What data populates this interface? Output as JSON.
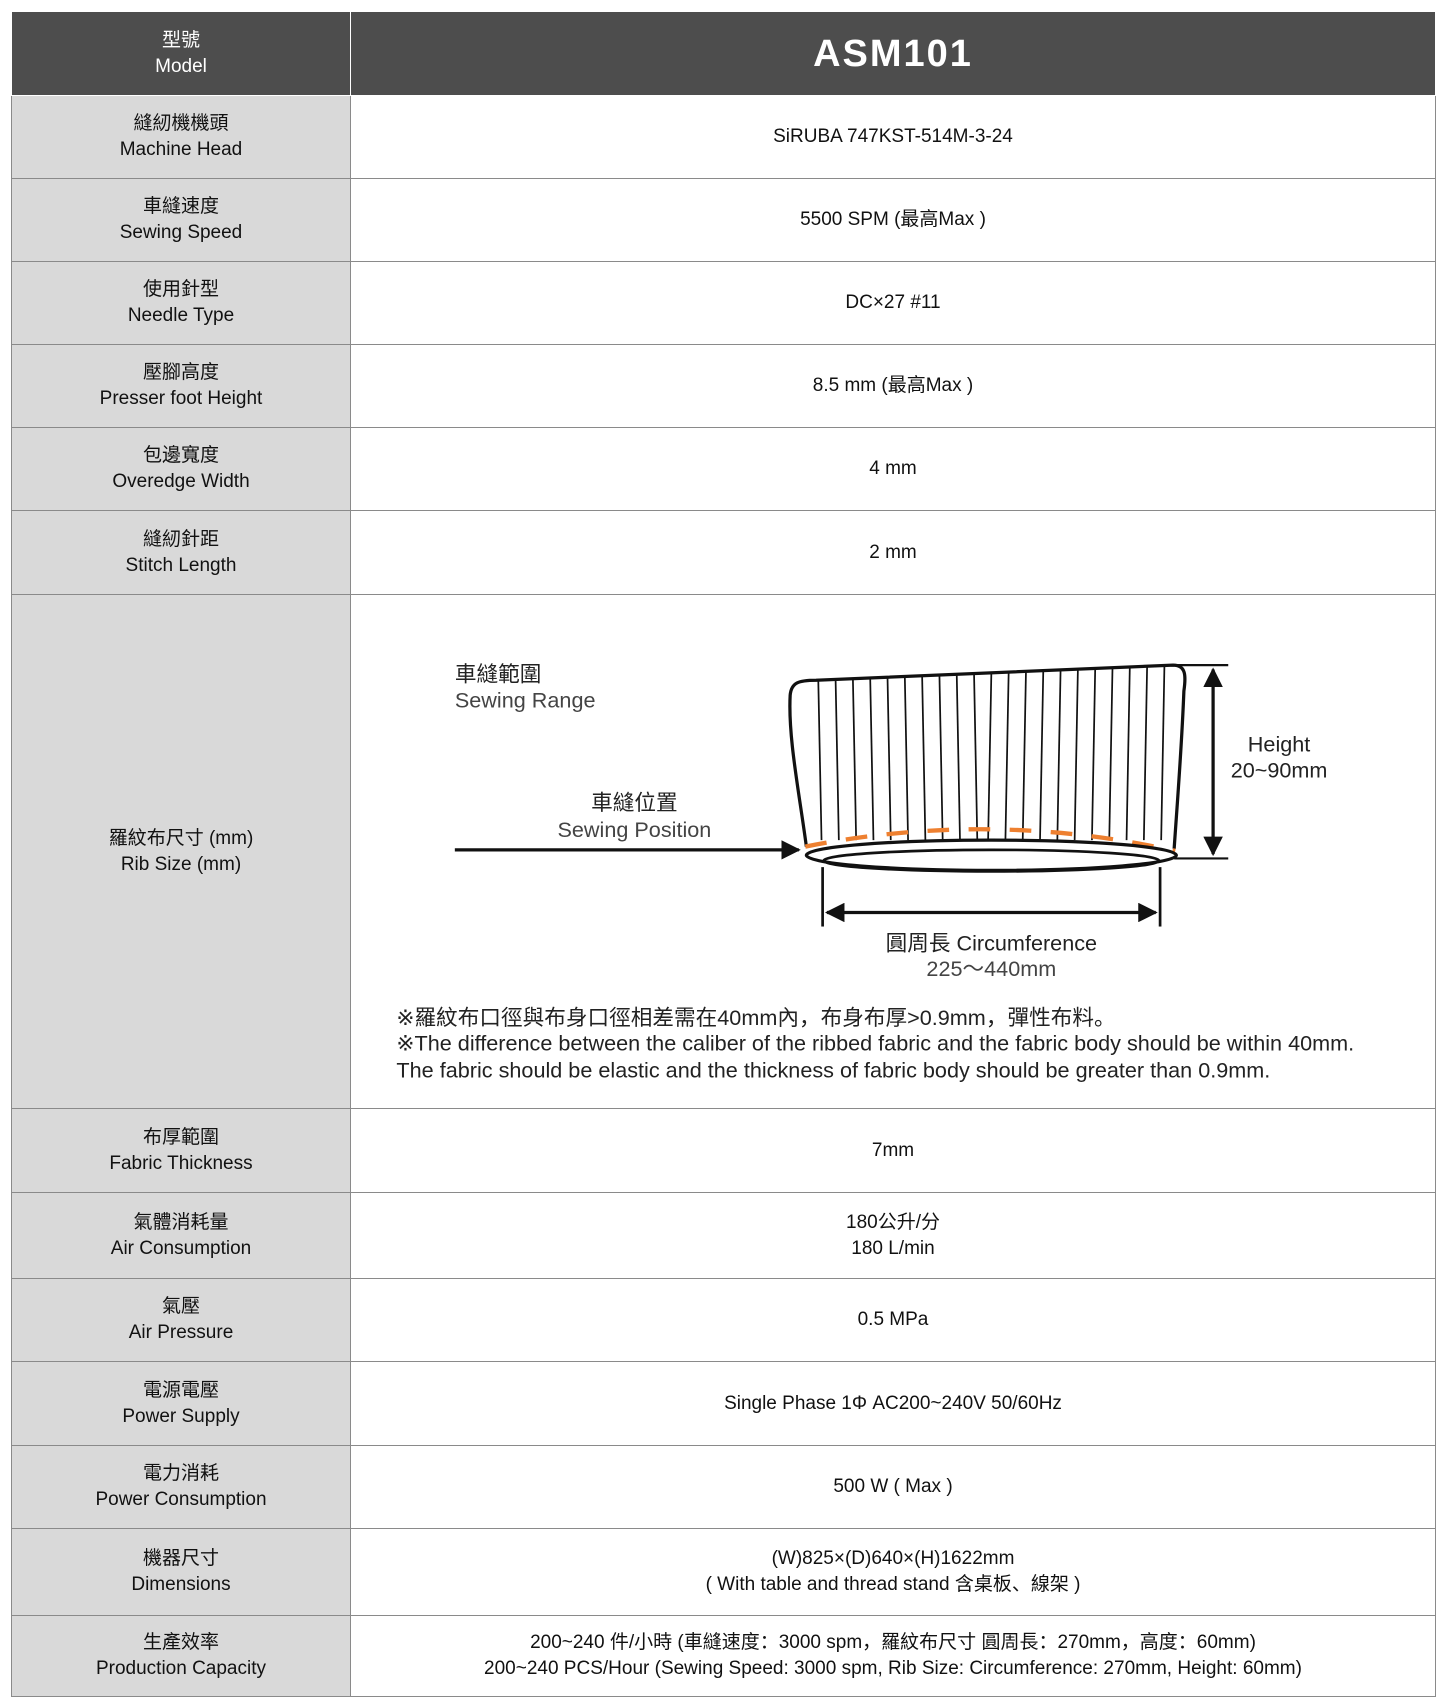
{
  "header": {
    "label": [
      "型號",
      "Model"
    ],
    "model": "ASM101"
  },
  "rows": [
    {
      "label": [
        "縫紉機機頭",
        "Machine Head"
      ],
      "value": [
        "SiRUBA 747KST-514M-3-24"
      ]
    },
    {
      "label": [
        "車縫速度",
        "Sewing Speed"
      ],
      "value": [
        "5500 SPM (最高Max )"
      ]
    },
    {
      "label": [
        "使用針型",
        "Needle Type"
      ],
      "value": [
        "DC×27 #11"
      ]
    },
    {
      "label": [
        "壓腳高度",
        "Presser foot Height"
      ],
      "value": [
        "8.5 mm (最高Max )"
      ]
    },
    {
      "label": [
        "包邊寬度",
        "Overedge Width"
      ],
      "value": [
        "4 mm"
      ]
    },
    {
      "label": [
        "縫紉針距",
        "Stitch Length"
      ],
      "value": [
        "2 mm"
      ]
    },
    {
      "label": [
        "羅紋布尺寸 (mm)",
        "Rib Size (mm)"
      ],
      "value": []
    },
    {
      "label": [
        "布厚範圍",
        "Fabric Thickness"
      ],
      "value": [
        "7mm"
      ]
    },
    {
      "label": [
        "氣體消耗量",
        "Air Consumption"
      ],
      "value": [
        "180公升/分",
        "180 L/min"
      ]
    },
    {
      "label": [
        "氣壓",
        "Air Pressure"
      ],
      "value": [
        "0.5 MPa"
      ]
    },
    {
      "label": [
        "電源電壓",
        "Power Supply"
      ],
      "value": [
        "Single Phase 1Φ AC200~240V  50/60Hz"
      ]
    },
    {
      "label": [
        "電力消耗",
        "Power Consumption"
      ],
      "value": [
        "500 W ( Max )"
      ]
    },
    {
      "label": [
        "機器尺寸",
        "Dimensions"
      ],
      "value": [
        "(W)825×(D)640×(H)1622mm",
        "( With table and thread stand 含桌板、線架 )"
      ]
    },
    {
      "label": [
        "生產效率",
        "Production Capacity"
      ],
      "value": [
        "200~240 件/小時 (車縫速度：3000 spm，羅紋布尺寸  圓周長：270mm，高度：60mm)",
        "200~240 PCS/Hour (Sewing Speed: 3000 spm, Rib Size: Circumference: 270mm, Height: 60mm)"
      ]
    }
  ],
  "rib_diagram": {
    "sewing_range": [
      "車縫範圍",
      "Sewing Range"
    ],
    "sewing_position": [
      "車縫位置",
      "Sewing Position"
    ],
    "height": [
      "Height",
      "20~90mm"
    ],
    "circumference": [
      "圓周長 Circumference",
      "225～440mm"
    ],
    "note": [
      "※羅紋布口徑與布身口徑相差需在40mm內，布身布厚>0.9mm，彈性布料。",
      "※The difference between the caliber of the ribbed fabric and the fabric body should be within 40mm.",
      "The fabric should be elastic and the thickness of fabric body should be greater than 0.9mm."
    ]
  }
}
